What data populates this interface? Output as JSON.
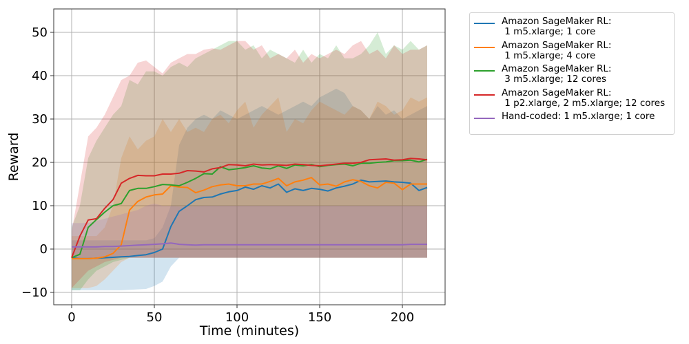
{
  "chart_data": {
    "type": "line",
    "title": "",
    "xlabel": "Time (minutes)",
    "ylabel": "Reward",
    "xlim": [
      -12,
      225
    ],
    "ylim": [
      -13,
      55
    ],
    "xticks": [
      0,
      50,
      100,
      150,
      200
    ],
    "yticks": [
      -10,
      0,
      10,
      20,
      30,
      40,
      50
    ],
    "xtick_labels": [
      "0",
      "50",
      "100",
      "150",
      "200"
    ],
    "ytick_labels": [
      "−10",
      "0",
      "10",
      "20",
      "30",
      "40",
      "50"
    ],
    "grid": true,
    "legend_position": "outside upper right",
    "x": [
      0,
      5,
      10,
      15,
      20,
      25,
      30,
      35,
      40,
      45,
      50,
      55,
      60,
      65,
      70,
      75,
      80,
      85,
      90,
      95,
      100,
      105,
      110,
      115,
      120,
      125,
      130,
      135,
      140,
      145,
      150,
      155,
      160,
      165,
      170,
      175,
      180,
      185,
      190,
      195,
      200,
      205,
      210,
      215
    ],
    "series": [
      {
        "name": "Amazon SageMaker RL:\n 1 m5.xlarge; 1 core",
        "color": "#1f77b4",
        "values": [
          -2,
          -2.2,
          -2.2,
          -2.1,
          -2,
          -1.9,
          -1.8,
          -1.7,
          -1.5,
          -1.3,
          -0.8,
          0,
          5.2,
          8.7,
          10,
          11.4,
          11.9,
          12,
          12.7,
          13.2,
          13.5,
          14.3,
          13.8,
          14.6,
          14.1,
          15,
          13.1,
          13.9,
          13.5,
          14,
          13.8,
          13.4,
          14.1,
          14.5,
          15,
          15.9,
          15.5,
          15.6,
          15.7,
          15.5,
          15.4,
          15.2,
          13.5,
          14.2
        ],
        "band_low": [
          -9.5,
          -9.5,
          -9.5,
          -9.5,
          -9.5,
          -9.5,
          -9.5,
          -9.4,
          -9.3,
          -9.2,
          -8.5,
          -7.5,
          -4,
          -2,
          -2,
          -2,
          -2,
          -2,
          -2,
          -2,
          -2,
          -2,
          -2,
          -2,
          -2,
          -2,
          -2,
          -2,
          -2,
          -2,
          -2,
          -2,
          -2,
          -2,
          -2,
          -2,
          -2,
          -2,
          -2,
          -2,
          -2,
          -2,
          -2,
          -2
        ],
        "band_high": [
          2,
          2,
          2,
          2,
          2,
          2,
          2,
          2,
          2,
          2,
          2.5,
          5,
          10,
          24,
          28,
          30,
          31,
          30,
          32,
          31,
          30,
          31,
          32,
          33,
          32,
          31,
          32,
          33,
          34,
          33,
          35,
          36,
          37,
          36,
          33,
          32,
          30,
          33,
          31,
          32,
          30,
          31,
          32,
          33
        ]
      },
      {
        "name": "Amazon SageMaker RL:\n 1 m5.xlarge; 4 core",
        "color": "#ff7f0e",
        "values": [
          -2.2,
          -2.2,
          -2.2,
          -2.1,
          -1.8,
          -1,
          1,
          9,
          11,
          12,
          12.5,
          12.7,
          14.6,
          14.3,
          14.2,
          13,
          13.6,
          14.4,
          14.8,
          15,
          14.6,
          14.6,
          15,
          15,
          15.6,
          16.3,
          14.6,
          15.5,
          15.9,
          16.5,
          14.8,
          15,
          14.5,
          15.5,
          16,
          15.6,
          14.6,
          14.1,
          15.4,
          15.2,
          13.7,
          15,
          15,
          15
        ],
        "band_low": [
          -9,
          -9,
          -9,
          -8.5,
          -7,
          -5,
          -3,
          -2,
          -2,
          -2,
          -2,
          -2,
          -2,
          -2,
          -2,
          -2,
          -2,
          -2,
          -2,
          -2,
          -2,
          -2,
          -2,
          -2,
          -2,
          -2,
          -2,
          -2,
          -2,
          -2,
          -2,
          -2,
          -2,
          -2,
          -2,
          -2,
          -2,
          -2,
          -2,
          -2,
          -2,
          -2,
          -2,
          -2
        ],
        "band_high": [
          3,
          3,
          3,
          3,
          5,
          10,
          21,
          26,
          23,
          25,
          26,
          30,
          27,
          30,
          27,
          28,
          27,
          30,
          31,
          29,
          32,
          34,
          28,
          31,
          33,
          35,
          27,
          30,
          29,
          32,
          34,
          33,
          32,
          31,
          33,
          32,
          30,
          34,
          33,
          31,
          32,
          35,
          34,
          35
        ]
      },
      {
        "name": "Amazon SageMaker RL:\n 3 m5.xlarge; 12 cores",
        "color": "#2ca02c",
        "values": [
          -2,
          -1.2,
          5,
          6.8,
          8.5,
          10,
          10.5,
          13.5,
          14,
          14,
          14.4,
          14.9,
          14.8,
          14.6,
          15.4,
          16.3,
          17.4,
          17.3,
          19,
          18.3,
          18.5,
          18.8,
          19.2,
          18.7,
          18.5,
          19.2,
          18.6,
          19.4,
          19.2,
          19.5,
          19,
          19.3,
          19.5,
          19.6,
          19.2,
          19.8,
          19.8,
          20,
          20.1,
          20.4,
          20.4,
          20.5,
          20.1,
          20.7
        ],
        "band_low": [
          -9.5,
          -9.5,
          -7,
          -5,
          -4,
          -3,
          -2.5,
          -2,
          -2,
          -2,
          -2,
          -2,
          -2,
          -2,
          -2,
          -2,
          -2,
          -2,
          -2,
          -2,
          -2,
          -2,
          -2,
          -2,
          -2,
          -2,
          -2,
          -2,
          -2,
          -2,
          -2,
          -2,
          -2,
          -2,
          -2,
          -2,
          -2,
          -2,
          -2,
          -2,
          -2,
          -2,
          -2,
          -2
        ],
        "band_high": [
          5,
          10,
          21,
          25,
          28,
          31,
          33,
          39,
          38,
          41,
          41,
          40,
          42,
          43,
          42,
          44,
          45,
          46,
          47,
          48,
          48,
          46,
          47,
          44,
          46,
          45,
          44,
          43,
          46,
          43,
          45,
          44,
          47,
          44,
          44,
          45,
          47,
          50,
          45,
          47,
          46,
          48,
          46,
          47
        ]
      },
      {
        "name": "Amazon SageMaker RL:\n 1 p2.xlarge, 2 m5.xlarge; 12 cores",
        "color": "#d62728",
        "values": [
          -2,
          3,
          6.7,
          7,
          9.4,
          11.4,
          15.2,
          16.3,
          17,
          16.9,
          16.9,
          17.3,
          17.3,
          17.5,
          18.1,
          18,
          17.8,
          18.5,
          18.8,
          19.5,
          19.4,
          19.2,
          19.6,
          19.4,
          19.5,
          19.4,
          19.3,
          19.6,
          19.5,
          19.3,
          19.2,
          19.4,
          19.6,
          19.8,
          19.8,
          20,
          20.6,
          20.7,
          20.8,
          20.5,
          20.6,
          20.9,
          20.8,
          20.6
        ],
        "band_low": [
          -9,
          -7,
          -5,
          -4,
          -3,
          -2.5,
          -2,
          -2,
          -2,
          -2,
          -2,
          -2,
          -2,
          -2,
          -2,
          -2,
          -2,
          -2,
          -2,
          -2,
          -2,
          -2,
          -2,
          -2,
          -2,
          -2,
          -2,
          -2,
          -2,
          -2,
          -2,
          -2,
          -2,
          -2,
          -2,
          -2,
          -2,
          -2,
          -2,
          -2,
          -2,
          -2,
          -2,
          -2
        ],
        "band_high": [
          4,
          15,
          26,
          28,
          31,
          35,
          39,
          40,
          43,
          43.5,
          42,
          40.5,
          43,
          44,
          45,
          45,
          46,
          46.3,
          46,
          47,
          48,
          48,
          46,
          47,
          44,
          45,
          44,
          46,
          43,
          45,
          44,
          45,
          46,
          45,
          47,
          48,
          45,
          46,
          44,
          47,
          45,
          46,
          46,
          47
        ]
      },
      {
        "name": "Hand-coded: 1 m5.xlarge; 1 core",
        "color": "#9467bd",
        "values": [
          0.5,
          0.5,
          0.5,
          0.5,
          0.6,
          0.6,
          0.7,
          0.8,
          0.9,
          1,
          1.1,
          1.2,
          1.4,
          1.1,
          1,
          0.9,
          1,
          1,
          1,
          1,
          1,
          1,
          1,
          1,
          1,
          1,
          1,
          1,
          1,
          1,
          1,
          1,
          1,
          1,
          1,
          1,
          1,
          1,
          1,
          1,
          1,
          1.1,
          1.1,
          1.1
        ],
        "band_low": [
          -2,
          -2,
          -2,
          -2,
          -2,
          -2,
          -2,
          -2,
          -2,
          -2,
          -2,
          -2,
          -2,
          -2,
          -2,
          -2,
          -2,
          -2,
          -2,
          -2,
          -2,
          -2,
          -2,
          -2,
          -2,
          -2,
          -2,
          -2,
          -2,
          -2,
          -2,
          -2,
          -2,
          -2,
          -2,
          -2,
          -2,
          -2,
          -2,
          -2,
          -2,
          -2,
          -2,
          -2
        ],
        "band_high": [
          6,
          6,
          6,
          6.5,
          7,
          7.5,
          8,
          8.5,
          9,
          10,
          10.5,
          10,
          10,
          9.8,
          9.8,
          9.9,
          10,
          10,
          10,
          10,
          10,
          10,
          10,
          10,
          10,
          10,
          10,
          10,
          10,
          10,
          10,
          10,
          10,
          10,
          10,
          10,
          10,
          10,
          10,
          10,
          10,
          10,
          10,
          10
        ]
      }
    ]
  },
  "legend": {
    "items": [
      {
        "label": "Amazon SageMaker RL:\n 1 m5.xlarge; 1 core",
        "color": "#1f77b4"
      },
      {
        "label": "Amazon SageMaker RL:\n 1 m5.xlarge; 4 core",
        "color": "#ff7f0e"
      },
      {
        "label": "Amazon SageMaker RL:\n 3 m5.xlarge; 12 cores",
        "color": "#2ca02c"
      },
      {
        "label": "Amazon SageMaker RL:\n 1 p2.xlarge, 2 m5.xlarge; 12 cores",
        "color": "#d62728"
      },
      {
        "label": "Hand-coded: 1 m5.xlarge; 1 core",
        "color": "#9467bd"
      }
    ]
  }
}
